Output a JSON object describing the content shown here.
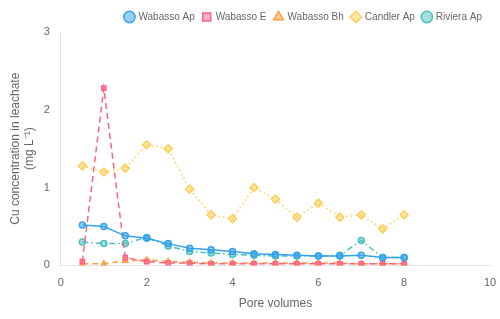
{
  "chart_data": {
    "type": "line",
    "title": "",
    "xlabel": "Pore volumes",
    "ylabel": "Cu concentration in leachate\n(mg L⁻¹)",
    "x": [
      0.5,
      1.0,
      1.5,
      2.0,
      2.5,
      3.0,
      3.5,
      4.0,
      4.5,
      5.0,
      5.5,
      6.0,
      6.5,
      7.0,
      7.5,
      8.0
    ],
    "series": [
      {
        "name": "Wabasso Ap",
        "line_style": "solid",
        "marker": "circle",
        "values": [
          0.52,
          0.5,
          0.38,
          0.35,
          0.28,
          0.22,
          0.2,
          0.18,
          0.15,
          0.14,
          0.13,
          0.12,
          0.12,
          0.13,
          0.1,
          0.1
        ]
      },
      {
        "name": "Wabasso E",
        "line_style": "dashed",
        "marker": "square",
        "values": [
          0.05,
          2.28,
          0.1,
          0.05,
          0.03,
          0.03,
          0.02,
          0.02,
          0.02,
          0.02,
          0.02,
          0.02,
          0.02,
          0.02,
          0.02,
          0.02
        ]
      },
      {
        "name": "Wabasso Bh",
        "line_style": "dashed",
        "marker": "triangle",
        "values": [
          0.02,
          0.02,
          0.06,
          0.07,
          0.05,
          0.04,
          0.03,
          0.03,
          0.03,
          0.03,
          0.03,
          0.03,
          0.03,
          0.02,
          0.02,
          0.02
        ]
      },
      {
        "name": "Candler Ap",
        "line_style": "dotted",
        "marker": "diamond",
        "values": [
          1.28,
          1.2,
          1.25,
          1.55,
          1.5,
          0.98,
          0.65,
          0.6,
          1.0,
          0.85,
          0.62,
          0.8,
          0.62,
          0.65,
          0.47,
          0.65
        ]
      },
      {
        "name": "Riviera Ap",
        "line_style": "dashdot",
        "marker": "circle",
        "values": [
          0.3,
          0.28,
          0.28,
          0.36,
          0.25,
          0.18,
          0.16,
          0.14,
          0.13,
          0.12,
          0.12,
          0.12,
          0.13,
          0.32,
          0.1,
          0.1
        ]
      }
    ],
    "xlim": [
      0,
      10
    ],
    "ylim": [
      0,
      3
    ],
    "xticks": [
      0,
      2,
      4,
      6,
      8,
      10
    ],
    "yticks": [
      0,
      1,
      2,
      3
    ],
    "grid": false,
    "legend": "upper right"
  }
}
